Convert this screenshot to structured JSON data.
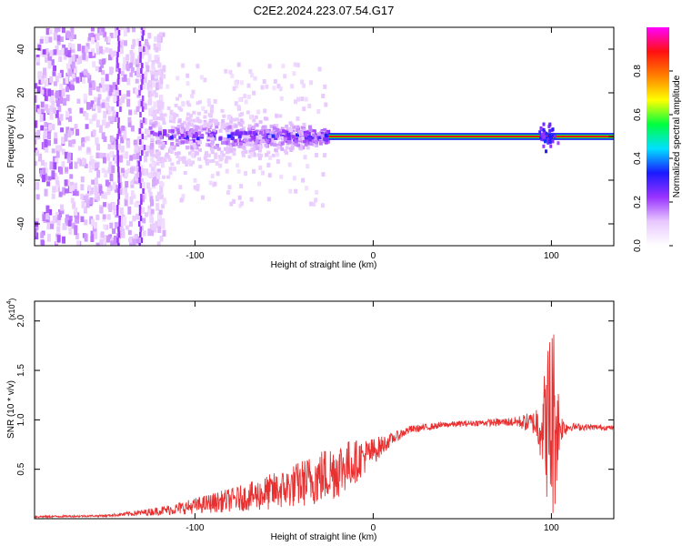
{
  "figure": {
    "title": "C2E2.2024.223.07.54.G17"
  },
  "chart_data": [
    {
      "type": "heatmap",
      "xlabel": "Height of straight line (km)",
      "ylabel": "Frequency (Hz)",
      "xlim": [
        -190,
        135
      ],
      "ylim": [
        -50,
        50
      ],
      "x_ticks": [
        -100,
        0,
        100
      ],
      "x_tick_labels": [
        "-100",
        "0",
        "100"
      ],
      "y_ticks": [
        -40,
        -20,
        0,
        20,
        40
      ],
      "y_tick_labels": [
        "-40",
        "-20",
        "0",
        "20",
        "40"
      ],
      "grid": false,
      "colorbar": {
        "label": "Normalized spectral amplitude",
        "range": [
          0,
          1
        ],
        "ticks": [
          0.0,
          0.2,
          0.4,
          0.6,
          0.8
        ],
        "tick_labels": [
          "0.0",
          "0.2",
          "0.4",
          "0.6",
          "0.8"
        ],
        "colors": [
          "#ffffff",
          "#e8c8ff",
          "#9933ff",
          "#1a1aff",
          "#00e0ff",
          "#00ff40",
          "#ffff00",
          "#ff8000",
          "#ff1010",
          "#ff00ff"
        ]
      },
      "structure": {
        "carrier_frequency_hz": 0,
        "noise_region_km": [
          -190,
          -125
        ],
        "scatter_region_km": [
          -125,
          -25
        ],
        "steady_carrier_km": [
          -25,
          135
        ],
        "local_disturbance_km": 97
      }
    },
    {
      "type": "line",
      "xlabel": "Height of straight line (km)",
      "ylabel": "SNR (10 * v/v)",
      "y_multiplier_label": "(x10",
      "y_multiplier_exp": "4",
      "y_multiplier_close": ")",
      "xlim": [
        -190,
        135
      ],
      "ylim": [
        0,
        2.2
      ],
      "x_ticks": [
        -100,
        0,
        100
      ],
      "x_tick_labels": [
        "-100",
        "0",
        "100"
      ],
      "y_ticks": [
        0.5,
        1.0,
        1.5,
        2.0
      ],
      "y_tick_labels": [
        "0.5",
        "1.0",
        "1.5",
        "2.0"
      ],
      "grid": false,
      "color": "#e83030",
      "envelope": {
        "x": [
          -190,
          -150,
          -130,
          -110,
          -90,
          -70,
          -60,
          -50,
          -40,
          -30,
          -20,
          -10,
          0,
          10,
          20,
          40,
          60,
          80,
          90,
          95,
          98,
          100,
          102,
          105,
          110,
          135
        ],
        "y_mean": [
          0.02,
          0.03,
          0.06,
          0.1,
          0.16,
          0.22,
          0.26,
          0.3,
          0.36,
          0.42,
          0.5,
          0.58,
          0.68,
          0.8,
          0.9,
          0.95,
          0.97,
          0.98,
          0.97,
          0.95,
          0.95,
          1.0,
          1.0,
          0.92,
          0.93,
          0.92
        ],
        "y_amp": [
          0.01,
          0.01,
          0.03,
          0.06,
          0.1,
          0.14,
          0.18,
          0.2,
          0.24,
          0.28,
          0.3,
          0.22,
          0.14,
          0.06,
          0.04,
          0.03,
          0.03,
          0.05,
          0.12,
          0.4,
          0.85,
          1.2,
          0.9,
          0.15,
          0.04,
          0.02
        ]
      }
    }
  ]
}
